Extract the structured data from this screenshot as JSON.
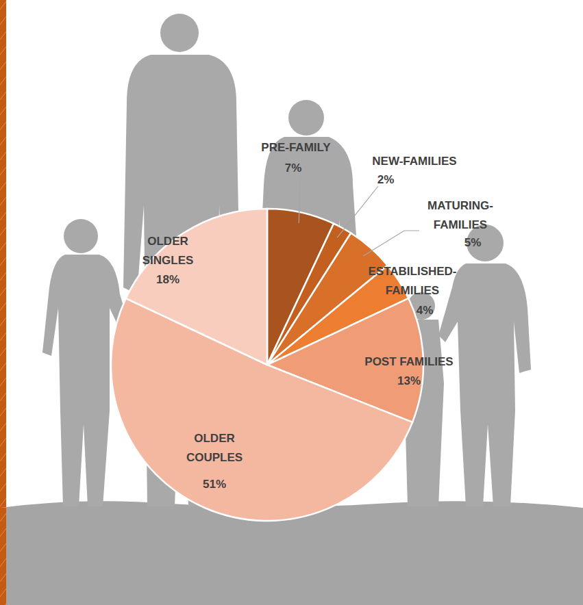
{
  "chart_data": {
    "type": "pie",
    "categories": [
      "PRE-FAMILY",
      "NEW-FAMILIES",
      "MATURING-FAMILIES",
      "ESTABILISHED-FAMILIES",
      "POST FAMILIES",
      "OLDER COUPLES",
      "OLDER SINGLES"
    ],
    "values": [
      7,
      2,
      5,
      4,
      13,
      51,
      18
    ],
    "value_labels": [
      "7%",
      "2%",
      "5%",
      "4%",
      "13%",
      "51%",
      "18%"
    ],
    "colors": [
      "#a9531f",
      "#c4601f",
      "#d9702a",
      "#ed7d31",
      "#f09c77",
      "#f4b7a0",
      "#f8cdbe"
    ],
    "data_labels": true
  }
}
